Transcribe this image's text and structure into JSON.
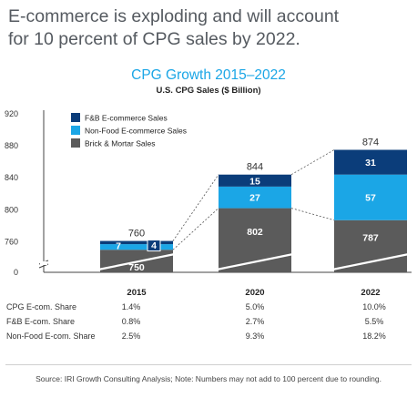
{
  "headline": {
    "line1": "E-commerce is exploding and will account",
    "line2": "for 10 percent of CPG sales by 2022."
  },
  "colors": {
    "fb": "#0b3d7a",
    "nonfood": "#1ba6e6",
    "brick": "#5b5b5b",
    "title": "#1ba6e6"
  },
  "chart_data": {
    "type": "bar",
    "stacked": true,
    "title": "CPG Growth 2015–2022",
    "subtitle": "U.S. CPG Sales ($ Billion)",
    "categories": [
      "2015",
      "2020",
      "2022"
    ],
    "series": [
      {
        "name": "Brick & Mortar Sales",
        "values": [
          750,
          802,
          787
        ],
        "color": "#5b5b5b"
      },
      {
        "name": "Non-Food E-commerce Sales",
        "values": [
          7,
          27,
          57
        ],
        "color": "#1ba6e6"
      },
      {
        "name": "F&B E-commerce Sales",
        "values": [
          4,
          15,
          31
        ],
        "color": "#0b3d7a"
      }
    ],
    "totals": [
      760,
      844,
      874
    ],
    "yticks": [
      0,
      760,
      800,
      840,
      880,
      920
    ],
    "ylim": [
      740,
      920
    ],
    "axis_break": true,
    "legend_position": "top-left"
  },
  "table": {
    "rows": [
      {
        "label": "CPG E-com. Share",
        "values": [
          "1.4%",
          "5.0%",
          "10.0%"
        ]
      },
      {
        "label": "F&B E-com. Share",
        "values": [
          "0.8%",
          "2.7%",
          "5.5%"
        ]
      },
      {
        "label": "Non-Food E-com. Share",
        "values": [
          "2.5%",
          "9.3%",
          "18.2%"
        ]
      }
    ]
  },
  "source": "Source: IRI Growth Consulting Analysis; Note: Numbers may not add to 100 percent due to rounding."
}
